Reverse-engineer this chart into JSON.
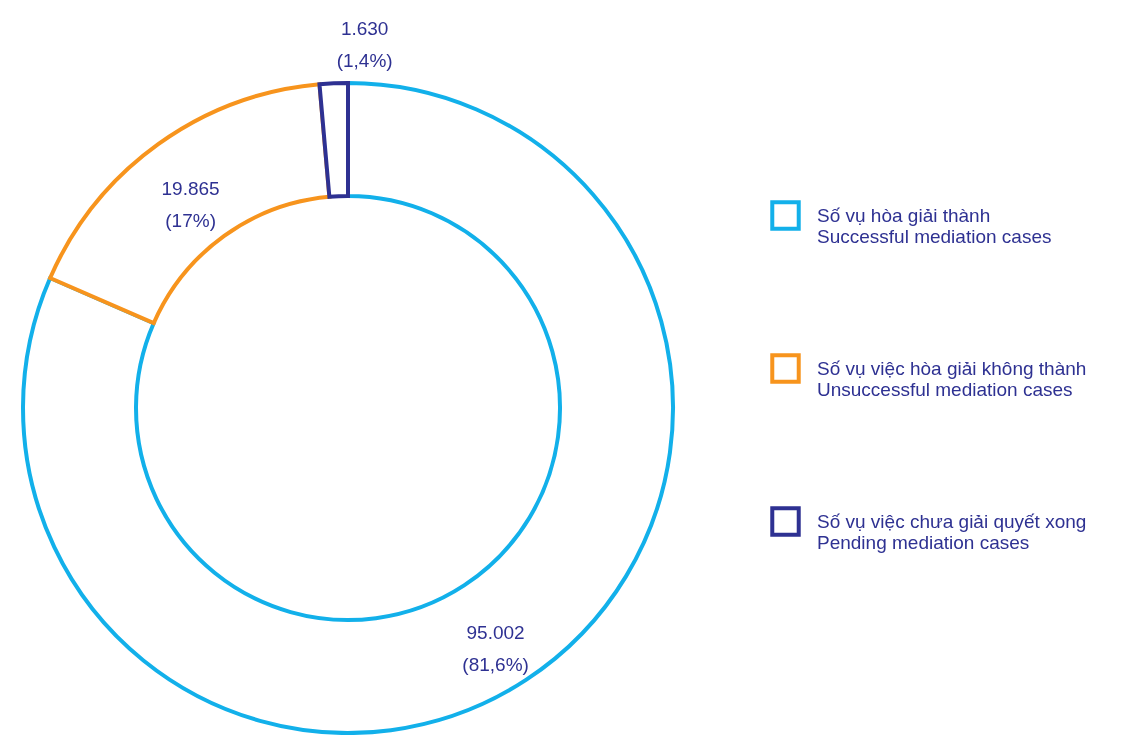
{
  "chart_data": {
    "type": "donut",
    "categories": [
      "Số vụ hòa giải thành\nSuccessful mediation cases",
      "Số vụ việc hòa giải không thành\nUnsuccessful mediation cases",
      "Số vụ việc chưa giải quyết xong\nPending mediation cases"
    ],
    "values": [
      95002,
      19865,
      1630
    ],
    "colors": [
      "#12b0ea",
      "#f7941d",
      "#2e3192"
    ],
    "value_labels": [
      "95.002\n(81,6%)",
      "19.865\n(17%)",
      "1.630\n(1,4%)"
    ],
    "legend": "right"
  }
}
